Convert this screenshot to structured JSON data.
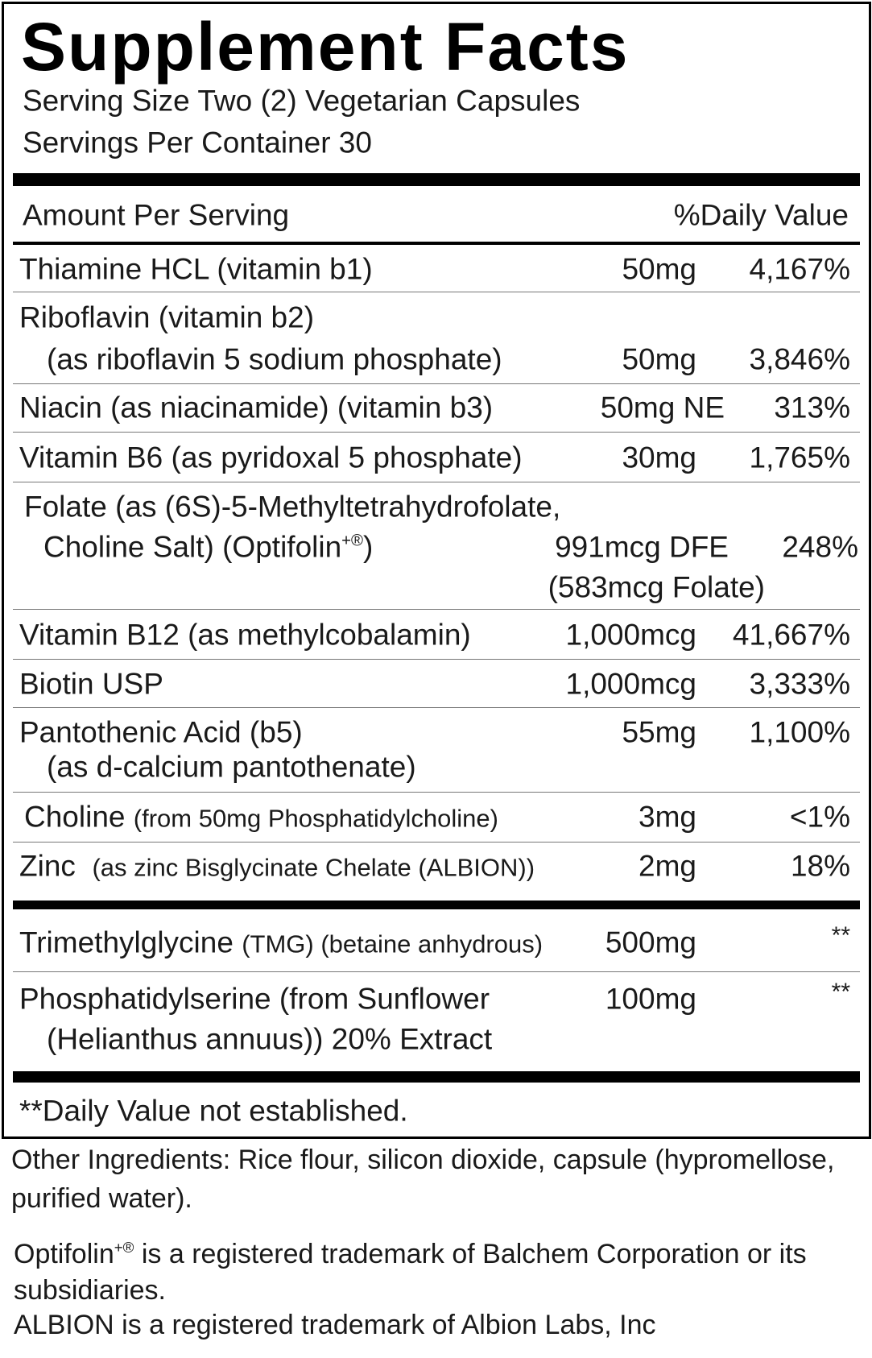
{
  "title": "Supplement Facts",
  "serving_size": "Serving Size Two (2) Vegetarian Capsules",
  "servings_per_container": "Servings Per Container 30",
  "header": {
    "amount": "Amount Per Serving",
    "dv": "%Daily Value"
  },
  "rows": [
    {
      "name": "Thiamine HCL (vitamin b1)",
      "amount": "50mg",
      "dv": "4,167%"
    },
    {
      "name": "Riboflavin (vitamin b2)",
      "sub": "(as riboflavin 5 sodium phosphate)",
      "amount": "50mg",
      "dv": "3,846%"
    },
    {
      "name": "Niacin (as niacinamide) (vitamin b3)",
      "amount": "50mg NE",
      "dv": "313%"
    },
    {
      "name": "Vitamin B6 (as pyridoxal 5 phosphate)",
      "amount": "30mg",
      "dv": "1,765%"
    },
    {
      "name": "Folate  (as (6S)-5-Methyltetrahydrofolate,",
      "sub": "Choline Salt) (Optifolin",
      "sub_sup": "+®",
      "sub_end": ")",
      "amount": "991mcg DFE",
      "amount2": "(583mcg Folate)",
      "dv": "248%"
    },
    {
      "name": "Vitamin B12 (as methylcobalamin)",
      "amount": "1,000mcg",
      "dv": "41,667%"
    },
    {
      "name": "Biotin USP",
      "amount": "1,000mcg",
      "dv": "3,333%"
    },
    {
      "name": "Pantothenic Acid (b5)",
      "sub": "(as d-calcium pantothenate)",
      "amount": "55mg",
      "dv": "1,100%"
    },
    {
      "name": "Choline",
      "detail": "(from 50mg Phosphatidylcholine)",
      "amount": "3mg",
      "dv": "<1%"
    },
    {
      "name": "Zinc",
      "detail": "(as zinc Bisglycinate Chelate (ALBION))",
      "amount": "2mg",
      "dv": "18%"
    }
  ],
  "other_rows": [
    {
      "name": "Trimethylglycine",
      "detail": "(TMG) (betaine anhydrous)",
      "amount": "500mg",
      "dv": "**"
    },
    {
      "name": "Phosphatidylserine (from Sunflower",
      "sub": "(Helianthus annuus)) 20% Extract",
      "amount": "100mg",
      "dv": "**"
    }
  ],
  "footnote": "**Daily Value not established.",
  "other_ingredients": [
    "Other Ingredients: Rice flour, silicon dioxide, capsule (hypromellose,",
    "purified water)."
  ],
  "trademarks": {
    "optifolin_name": "Optifolin",
    "optifolin_sup": "+®",
    "optifolin_rest": " is a registered trademark of Balchem Corporation or its",
    "optifolin_line2": "subsidiaries.",
    "albion": "ALBION is a registered trademark of Albion Labs, Inc"
  }
}
